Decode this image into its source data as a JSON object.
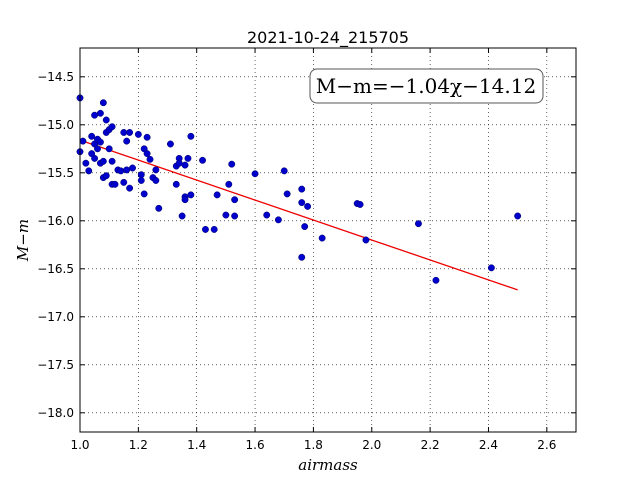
{
  "chart_data": {
    "type": "scatter",
    "title": "2021-10-24_215705",
    "xlabel": "airmass",
    "ylabel": "M−m",
    "annotation": "M−m=−1.04χ−14.12",
    "xlim": [
      1.0,
      2.7
    ],
    "ylim": [
      -18.2,
      -14.2
    ],
    "y_inverted": true,
    "grid": true,
    "xticks": [
      "1.0",
      "1.2",
      "1.4",
      "1.6",
      "1.8",
      "2.0",
      "2.2",
      "2.4",
      "2.6"
    ],
    "yticks": [
      "−14.5",
      "−15.0",
      "−15.5",
      "−16.0",
      "−16.5",
      "−17.0",
      "−17.5",
      "−18.0"
    ],
    "xtick_values": [
      1.0,
      1.2,
      1.4,
      1.6,
      1.8,
      2.0,
      2.2,
      2.4,
      2.6
    ],
    "ytick_values": [
      -14.5,
      -15.0,
      -15.5,
      -16.0,
      -16.5,
      -17.0,
      -17.5,
      -18.0
    ],
    "colors": {
      "points": "#0000cc",
      "fit": "#ee0000"
    },
    "series": [
      {
        "kind": "points",
        "x": [
          1.0,
          1.0,
          1.01,
          1.02,
          1.03,
          1.04,
          1.04,
          1.05,
          1.05,
          1.05,
          1.06,
          1.06,
          1.07,
          1.07,
          1.07,
          1.08,
          1.08,
          1.08,
          1.09,
          1.09,
          1.09,
          1.1,
          1.1,
          1.11,
          1.11,
          1.11,
          1.12,
          1.13,
          1.14,
          1.15,
          1.15,
          1.16,
          1.16,
          1.17,
          1.17,
          1.18,
          1.2,
          1.21,
          1.21,
          1.22,
          1.22,
          1.23,
          1.23,
          1.24,
          1.25,
          1.26,
          1.26,
          1.27,
          1.31,
          1.33,
          1.33,
          1.34,
          1.34,
          1.35,
          1.36,
          1.36,
          1.36,
          1.37,
          1.38,
          1.38,
          1.42,
          1.43,
          1.46,
          1.47,
          1.5,
          1.51,
          1.52,
          1.53,
          1.53,
          1.6,
          1.64,
          1.68,
          1.7,
          1.71,
          1.76,
          1.76,
          1.76,
          1.77,
          1.78,
          1.83,
          1.95,
          1.96,
          1.98,
          2.16,
          2.22,
          2.41,
          2.5
        ],
        "y": [
          -14.72,
          -15.28,
          -15.17,
          -15.4,
          -15.48,
          -15.12,
          -15.3,
          -15.2,
          -15.35,
          -14.9,
          -15.15,
          -15.25,
          -14.88,
          -15.18,
          -15.4,
          -14.77,
          -15.38,
          -15.55,
          -14.95,
          -15.08,
          -15.53,
          -15.05,
          -15.25,
          -15.02,
          -15.38,
          -15.62,
          -15.62,
          -15.47,
          -15.48,
          -15.08,
          -15.6,
          -15.17,
          -15.47,
          -15.08,
          -15.66,
          -15.45,
          -15.1,
          -15.52,
          -15.58,
          -15.25,
          -15.72,
          -15.13,
          -15.3,
          -15.36,
          -15.55,
          -15.47,
          -15.58,
          -15.87,
          -15.2,
          -15.62,
          -15.43,
          -15.35,
          -15.4,
          -15.95,
          -15.42,
          -15.75,
          -15.78,
          -15.35,
          -15.12,
          -15.73,
          -15.37,
          -16.09,
          -16.09,
          -15.73,
          -15.94,
          -15.62,
          -15.41,
          -15.78,
          -15.95,
          -15.51,
          -15.94,
          -15.99,
          -15.48,
          -15.72,
          -15.67,
          -15.81,
          -16.38,
          -16.06,
          -15.85,
          -16.18,
          -15.82,
          -15.83,
          -16.2,
          -16.03,
          -16.62,
          -16.49,
          -15.95
        ]
      },
      {
        "kind": "fit-line",
        "slope": -1.04,
        "intercept": -14.12,
        "x": [
          1.0,
          2.5
        ]
      }
    ]
  }
}
